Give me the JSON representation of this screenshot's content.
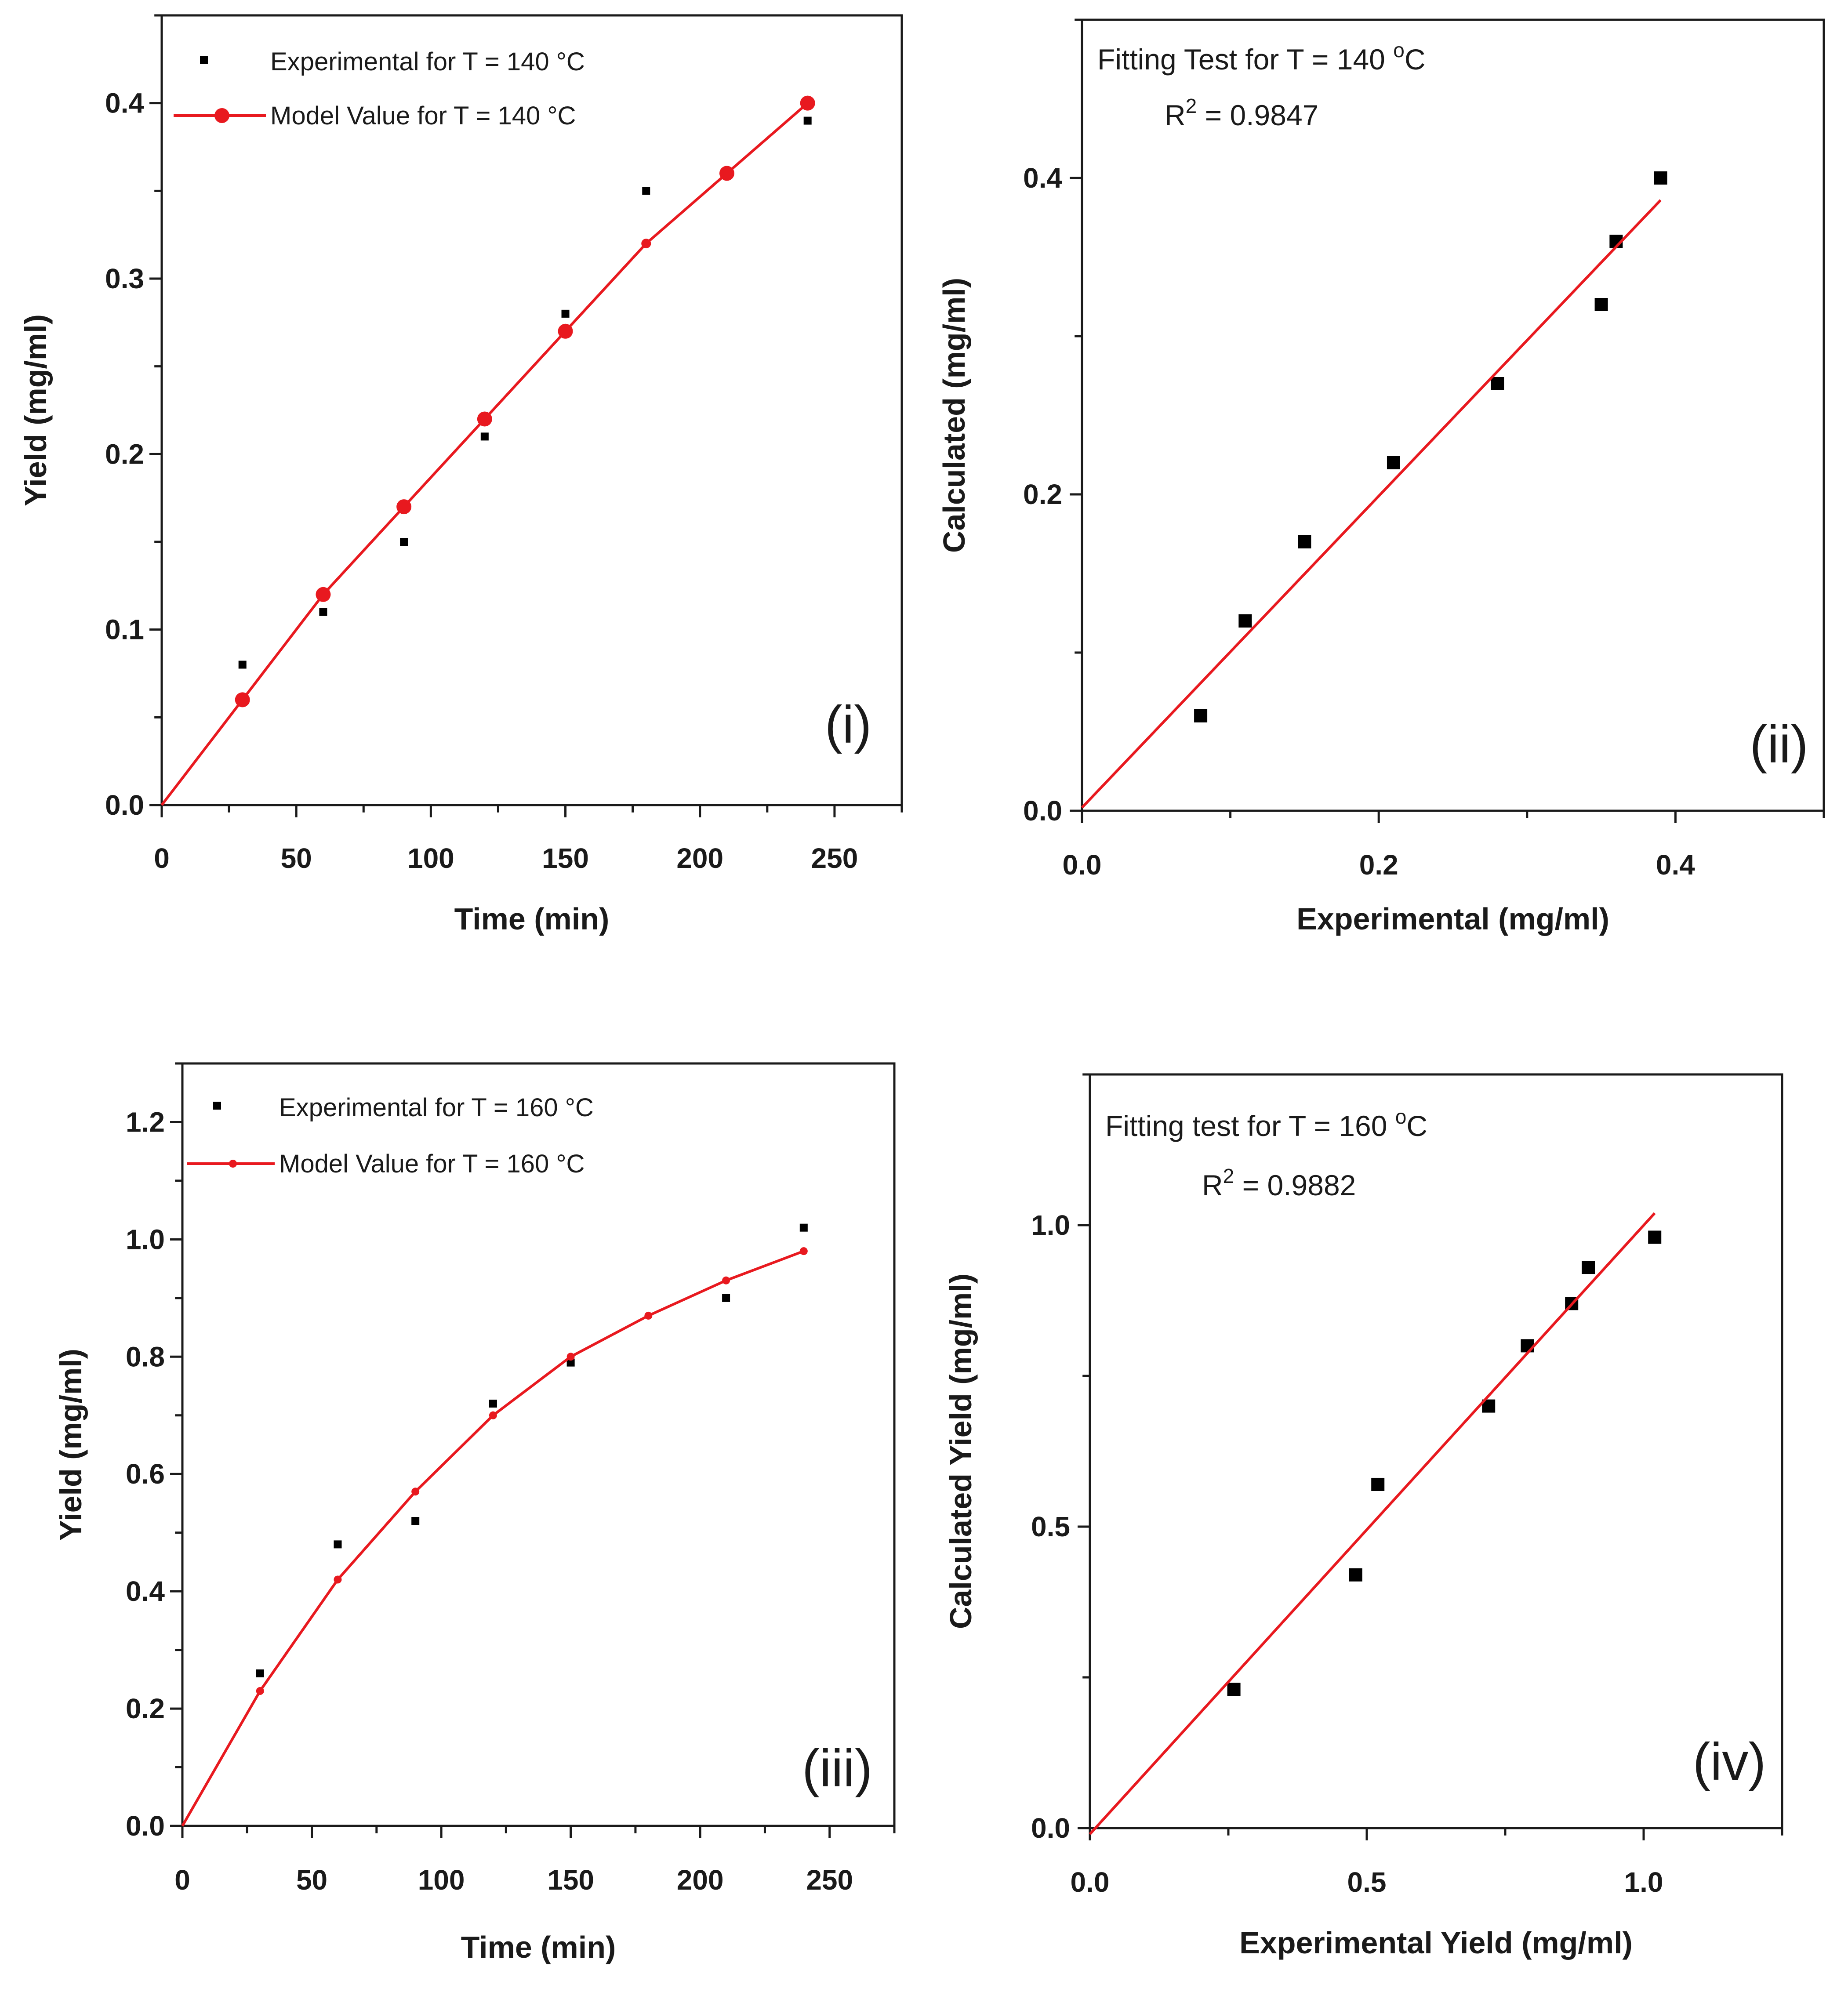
{
  "colors": {
    "experimental": "#000000",
    "model": "#e8191f",
    "axis": "#1a1a1a"
  },
  "chart_data": [
    {
      "id": "i",
      "type": "scatter",
      "panel_label": "(i)",
      "xlabel": "Time (min)",
      "ylabel": "Yield (mg/ml)",
      "xlim": [
        0,
        275
      ],
      "ylim": [
        0,
        0.45
      ],
      "xticks": [
        0,
        50,
        100,
        150,
        200,
        250
      ],
      "yticks": [
        0.0,
        0.1,
        0.2,
        0.3,
        0.4
      ],
      "xtick_labels": [
        "0",
        "50",
        "100",
        "150",
        "200",
        "250"
      ],
      "ytick_labels": [
        "0.0",
        "0.1",
        "0.2",
        "0.3",
        "0.4"
      ],
      "legend": {
        "experimental": "Experimental for T = 140 °C",
        "model": "Model Value for T = 140 °C"
      },
      "series": [
        {
          "name": "Experimental for T = 140 °C",
          "kind": "points",
          "x": [
            30,
            60,
            90,
            120,
            150,
            180,
            240
          ],
          "y": [
            0.08,
            0.11,
            0.15,
            0.21,
            0.28,
            0.35,
            0.39
          ]
        },
        {
          "name": "Model Value for T = 140 °C",
          "kind": "line+markers",
          "x": [
            0,
            30,
            60,
            90,
            120,
            150,
            180,
            210,
            240
          ],
          "y": [
            0.0,
            0.06,
            0.12,
            0.17,
            0.22,
            0.27,
            0.32,
            0.36,
            0.4
          ]
        }
      ]
    },
    {
      "id": "ii",
      "type": "scatter",
      "panel_label": "(ii)",
      "xlabel": "Experimental (mg/ml)",
      "ylabel": "Calculated (mg/ml)",
      "xlim": [
        0,
        0.5
      ],
      "ylim": [
        0,
        0.5
      ],
      "xticks": [
        0.0,
        0.2,
        0.4
      ],
      "yticks": [
        0.0,
        0.2,
        0.4
      ],
      "xtick_labels": [
        "0.0",
        "0.2",
        "0.4"
      ],
      "ytick_labels": [
        "0.0",
        "0.2",
        "0.4"
      ],
      "annotation": {
        "title": "Fitting Test for T = 140 ",
        "title_sup": "o",
        "title_unit": "C",
        "r2_label": "R",
        "r2_sup": "2",
        "r2_value": " = 0.9847"
      },
      "series": [
        {
          "name": "data",
          "kind": "points",
          "x": [
            0.08,
            0.11,
            0.15,
            0.21,
            0.28,
            0.35,
            0.36,
            0.39
          ],
          "y": [
            0.06,
            0.12,
            0.17,
            0.22,
            0.27,
            0.32,
            0.36,
            0.4
          ]
        },
        {
          "name": "fit",
          "kind": "line",
          "x": [
            0.0,
            0.39
          ],
          "y": [
            0.002,
            0.386
          ]
        }
      ]
    },
    {
      "id": "iii",
      "type": "scatter",
      "panel_label": "(iii)",
      "xlabel": "Time (min)",
      "ylabel": "Yield (mg/ml)",
      "xlim": [
        0,
        275
      ],
      "ylim": [
        0,
        1.3
      ],
      "xticks": [
        0,
        50,
        100,
        150,
        200,
        250
      ],
      "yticks": [
        0.0,
        0.2,
        0.4,
        0.6,
        0.8,
        1.0,
        1.2
      ],
      "xtick_labels": [
        "0",
        "50",
        "100",
        "150",
        "200",
        "250"
      ],
      "ytick_labels": [
        "0.0",
        "0.2",
        "0.4",
        "0.6",
        "0.8",
        "1.0",
        "1.2"
      ],
      "legend": {
        "experimental": "Experimental for T = 160 °C",
        "model": "Model Value for T = 160 °C"
      },
      "series": [
        {
          "name": "Experimental for T = 160 °C",
          "kind": "points",
          "x": [
            30,
            60,
            90,
            120,
            150,
            210,
            240
          ],
          "y": [
            0.26,
            0.48,
            0.52,
            0.72,
            0.79,
            0.9,
            1.02
          ]
        },
        {
          "name": "Model Value for T = 160 °C",
          "kind": "line+markers",
          "x": [
            0,
            30,
            60,
            90,
            120,
            150,
            180,
            210,
            240
          ],
          "y": [
            0.0,
            0.23,
            0.42,
            0.57,
            0.7,
            0.8,
            0.87,
            0.93,
            0.98
          ]
        }
      ]
    },
    {
      "id": "iv",
      "type": "scatter",
      "panel_label": "(iv)",
      "xlabel": "Experimental Yield (mg/ml)",
      "ylabel": "Calculated Yield (mg/ml)",
      "xlim": [
        0,
        1.25
      ],
      "ylim": [
        0,
        1.25
      ],
      "xticks": [
        0.0,
        0.5,
        1.0
      ],
      "yticks": [
        0.0,
        0.5,
        1.0
      ],
      "xtick_labels": [
        "0.0",
        "0.5",
        "1.0"
      ],
      "ytick_labels": [
        "0.0",
        "0.5",
        "1.0"
      ],
      "annotation": {
        "title": "Fitting test  for T = 160 ",
        "title_sup": "o",
        "title_unit": "C",
        "r2_label": "R",
        "r2_sup": "2",
        "r2_value": " = 0.9882"
      },
      "series": [
        {
          "name": "data",
          "kind": "points",
          "x": [
            0.26,
            0.48,
            0.52,
            0.72,
            0.79,
            0.87,
            0.9,
            1.02
          ],
          "y": [
            0.23,
            0.42,
            0.57,
            0.7,
            0.8,
            0.87,
            0.93,
            0.98
          ]
        },
        {
          "name": "fit",
          "kind": "line",
          "x": [
            0.0,
            1.02
          ],
          "y": [
            -0.01,
            1.02
          ]
        }
      ]
    }
  ]
}
